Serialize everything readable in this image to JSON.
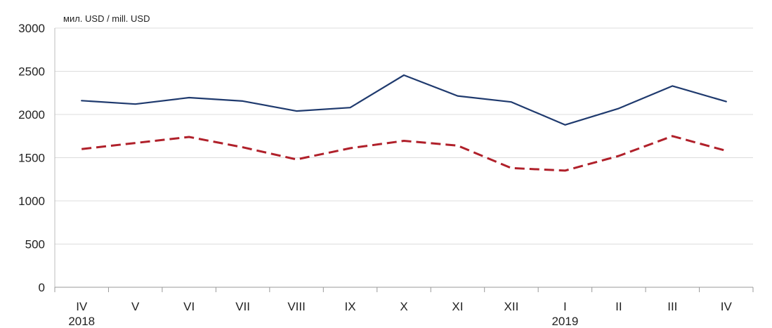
{
  "chart_data": {
    "type": "line",
    "unit_label": "мил. USD / mill. USD",
    "categories": [
      "IV",
      "V",
      "VI",
      "VII",
      "VIII",
      "IX",
      "X",
      "XI",
      "XII",
      "I",
      "II",
      "III",
      "IV"
    ],
    "year_labels": [
      {
        "label": "2018",
        "index": 0
      },
      {
        "label": "2019",
        "index": 9
      }
    ],
    "ylim": [
      0,
      3000
    ],
    "yticks": [
      "0",
      "500",
      "1000",
      "1500",
      "2000",
      "2500",
      "3000"
    ],
    "grid": true,
    "legend": "none",
    "series": [
      {
        "color": "#1f3a6e",
        "style": "solid",
        "values": [
          2160,
          2120,
          2195,
          2155,
          2040,
          2080,
          2455,
          2215,
          2145,
          1880,
          2070,
          2330,
          2150
        ]
      },
      {
        "color": "#b0202a",
        "style": "dashed",
        "values": [
          1600,
          1670,
          1740,
          1620,
          1480,
          1610,
          1695,
          1640,
          1380,
          1350,
          1520,
          1750,
          1580
        ]
      }
    ]
  }
}
